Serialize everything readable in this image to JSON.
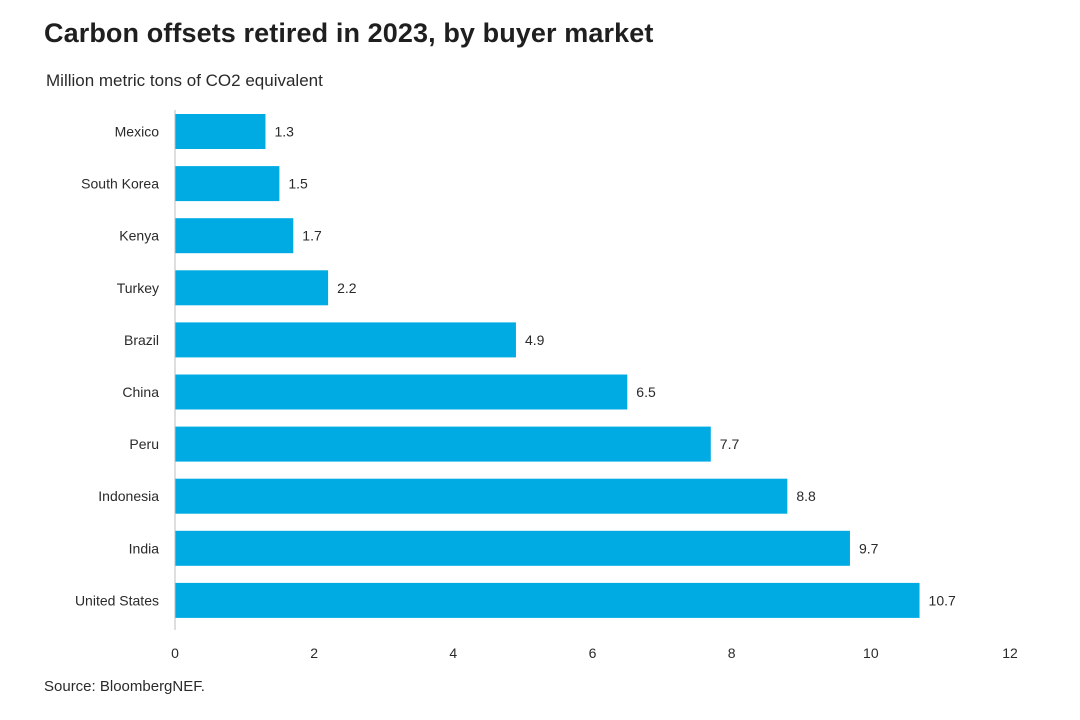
{
  "chart_data": {
    "type": "bar",
    "orientation": "horizontal",
    "title": "Carbon offsets retired in 2023, by buyer market",
    "subtitle": "Million metric tons of CO2 equivalent",
    "source": "Source: BloombergNEF.",
    "categories": [
      "Mexico",
      "South Korea",
      "Kenya",
      "Turkey",
      "Brazil",
      "China",
      "Peru",
      "Indonesia",
      "India",
      "United States"
    ],
    "values": [
      1.3,
      1.5,
      1.7,
      2.2,
      4.9,
      6.5,
      7.7,
      8.8,
      9.7,
      10.7
    ],
    "data_labels": [
      "1.3",
      "1.5",
      "1.7",
      "2.2",
      "4.9",
      "6.5",
      "7.7",
      "8.8",
      "9.7",
      "10.7"
    ],
    "xlim": [
      0,
      12
    ],
    "x_ticks": [
      "0",
      "2",
      "4",
      "6",
      "8",
      "10",
      "12"
    ],
    "xlabel": "",
    "ylabel": "",
    "grid": false,
    "legend": "none",
    "bar_color": "#00ABE4"
  }
}
